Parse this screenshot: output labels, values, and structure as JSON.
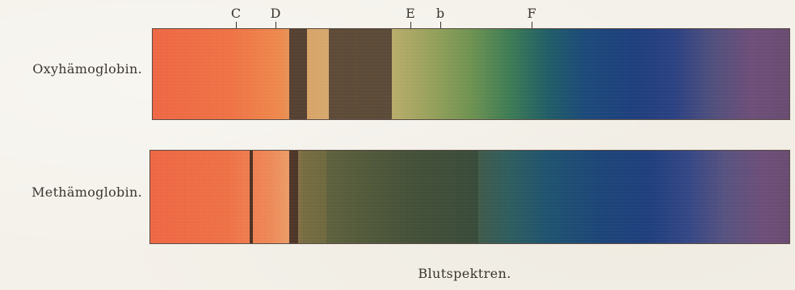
{
  "figure": {
    "caption": "Blutspektren.",
    "fraunhofer_lines": [
      {
        "label": "C",
        "wavelength_nm": 656
      },
      {
        "label": "D",
        "wavelength_nm": 589
      },
      {
        "label": "E",
        "wavelength_nm": 527
      },
      {
        "label": "b",
        "wavelength_nm": 518
      },
      {
        "label": "F",
        "wavelength_nm": 486
      }
    ],
    "spectra": [
      {
        "id": "oxy",
        "label": "Oxyhämoglobin.",
        "absorption_bands": [
          {
            "start_nm": 583,
            "end_nm": 575,
            "color": "#4a3a2f",
            "opacity": 0.92
          },
          {
            "start_nm": 565,
            "end_nm": 536,
            "color": "#4a3a2f",
            "opacity": 0.85
          }
        ]
      },
      {
        "id": "met",
        "label": "Methämoglobin.",
        "absorption_bands": [
          {
            "start_nm": 634,
            "end_nm": 629,
            "color": "#3f2b22",
            "opacity": 0.92
          },
          {
            "start_nm": 583,
            "end_nm": 579,
            "color": "#3f2b22",
            "opacity": 0.9
          },
          {
            "start_nm": 579,
            "end_nm": 566,
            "color": "#5b5535",
            "opacity": 0.55
          },
          {
            "start_nm": 566,
            "end_nm": 505,
            "color": "#2f3b2c",
            "opacity": 0.45
          }
        ]
      }
    ]
  }
}
